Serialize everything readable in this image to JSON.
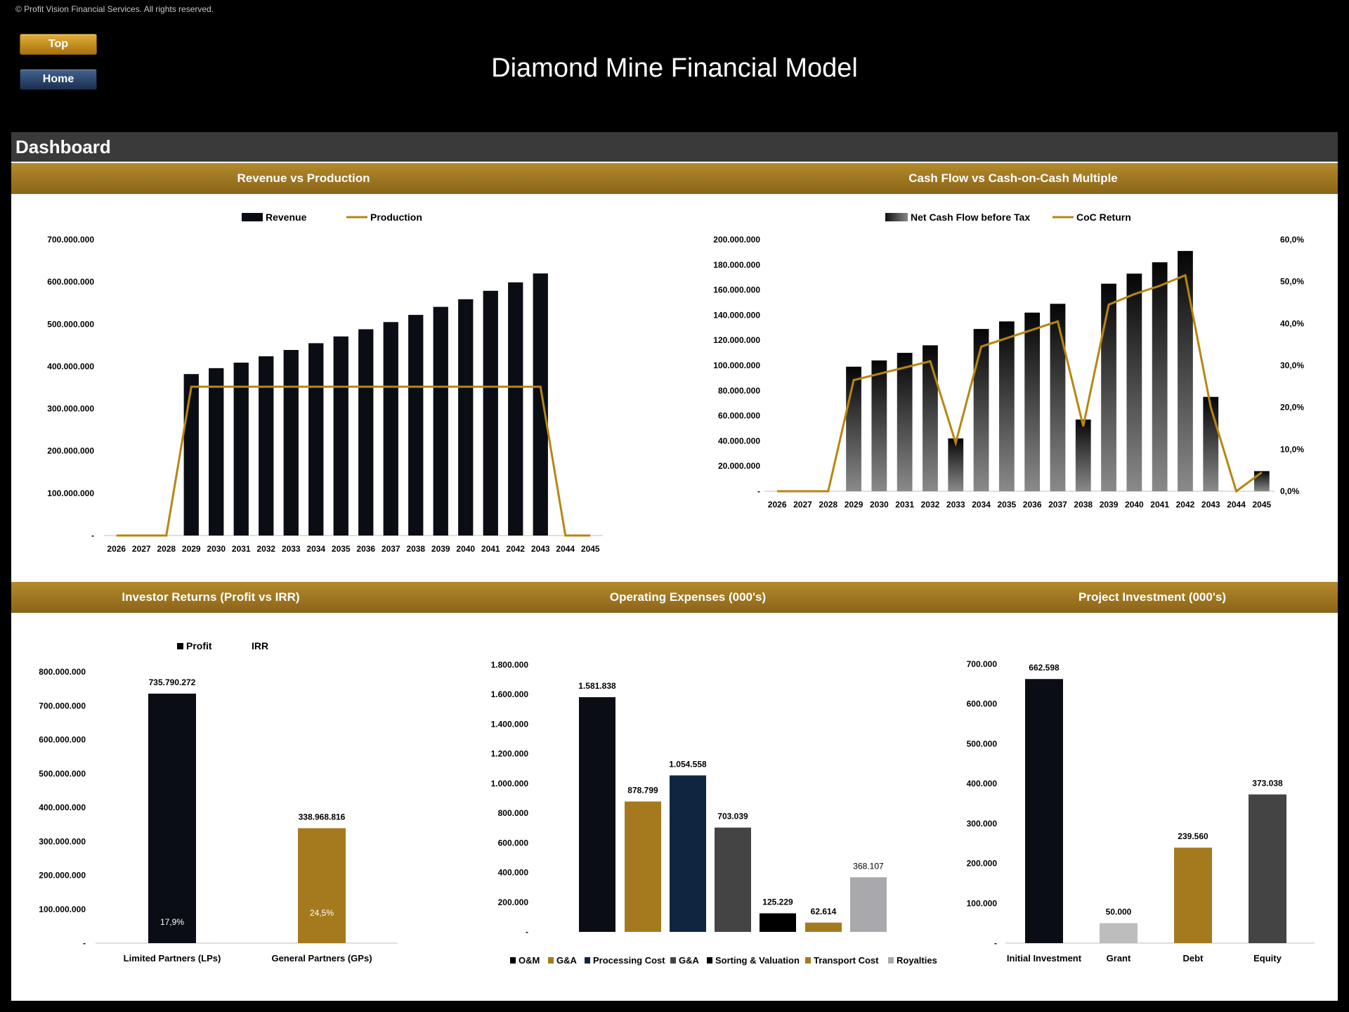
{
  "header": {
    "copyright": "© Profit Vision Financial Services. All rights reserved.",
    "top_button": "Top",
    "home_button": "Home",
    "title": "Diamond Mine Financial Model"
  },
  "dashboard": {
    "title": "Dashboard",
    "revenue_title": "Revenue vs Production",
    "cashflow_title": "Cash Flow vs Cash-on-Cash Multiple",
    "investor_title": "Investor Returns (Profit vs IRR)",
    "opex_title": "Operating Expenses (000's)",
    "investment_title": "Project Investment (000's)"
  },
  "colors": {
    "gold": "#a57a1e",
    "line": "#b7860f",
    "navy": "#0f2540",
    "dark": "#0a0d14",
    "grey": "#444444",
    "lightgrey": "#bdbdbd"
  },
  "chart_data": [
    {
      "id": "revenue",
      "type": "bar",
      "title": "Revenue vs Production",
      "categories": [
        "2026",
        "2027",
        "2028",
        "2029",
        "2030",
        "2031",
        "2032",
        "2033",
        "2034",
        "2035",
        "2036",
        "2037",
        "2038",
        "2039",
        "2040",
        "2041",
        "2042",
        "2043",
        "2044",
        "2045"
      ],
      "series": [
        {
          "name": "Revenue",
          "kind": "bar",
          "values": [
            0,
            0,
            0,
            382000000,
            396000000,
            409000000,
            424000000,
            439000000,
            455000000,
            471000000,
            488000000,
            505000000,
            522000000,
            541000000,
            559000000,
            579000000,
            599000000,
            620000000,
            0,
            0
          ]
        },
        {
          "name": "Production",
          "kind": "line",
          "values": [
            0,
            0,
            0,
            352000000,
            352000000,
            352000000,
            352000000,
            352000000,
            352000000,
            352000000,
            352000000,
            352000000,
            352000000,
            352000000,
            352000000,
            352000000,
            352000000,
            352000000,
            0,
            0
          ]
        }
      ],
      "ylim": [
        0,
        700000000
      ],
      "yticks": [
        "-",
        "100.000.000",
        "200.000.000",
        "300.000.000",
        "400.000.000",
        "500.000.000",
        "600.000.000",
        "700.000.000"
      ]
    },
    {
      "id": "cashflow",
      "type": "bar",
      "title": "Cash Flow vs Cash-on-Cash Multiple",
      "categories": [
        "2026",
        "2027",
        "2028",
        "2029",
        "2030",
        "2031",
        "2032",
        "2033",
        "2034",
        "2035",
        "2036",
        "2037",
        "2038",
        "2039",
        "2040",
        "2041",
        "2042",
        "2043",
        "2044",
        "2045"
      ],
      "series": [
        {
          "name": "Net Cash Flow before Tax",
          "kind": "bar",
          "values": [
            0,
            0,
            0,
            99000000,
            104000000,
            110000000,
            116000000,
            42000000,
            129000000,
            135000000,
            142000000,
            149000000,
            57000000,
            165000000,
            173000000,
            182000000,
            191000000,
            75000000,
            0,
            16000000
          ]
        },
        {
          "name": "CoC Return",
          "kind": "line",
          "axis": "right",
          "values": [
            0,
            0,
            0,
            26.5,
            28.0,
            29.5,
            31.0,
            11.5,
            34.5,
            36.5,
            38.5,
            40.5,
            15.5,
            44.5,
            47.0,
            49.0,
            51.5,
            20.0,
            0,
            4.5
          ]
        }
      ],
      "ylim": [
        0,
        200000000
      ],
      "yticks": [
        "-",
        "20.000.000",
        "40.000.000",
        "60.000.000",
        "80.000.000",
        "100.000.000",
        "120.000.000",
        "140.000.000",
        "160.000.000",
        "180.000.000",
        "200.000.000"
      ],
      "y2lim": [
        0,
        60
      ],
      "y2ticks": [
        "0,0%",
        "10,0%",
        "20,0%",
        "30,0%",
        "40,0%",
        "50,0%",
        "60,0%"
      ]
    },
    {
      "id": "investor",
      "type": "bar",
      "title": "Investor Returns (Profit vs IRR)",
      "categories": [
        "Limited Partners (LPs)",
        "General Partners (GPs)"
      ],
      "values": [
        735790272,
        338968816
      ],
      "value_labels": [
        "735.790.272",
        "338.968.816"
      ],
      "irr_labels": [
        "17,9%",
        "24,5%"
      ],
      "legend": [
        "Profit",
        "IRR"
      ],
      "ylim": [
        0,
        800000000
      ],
      "yticks": [
        "-",
        "100.000.000",
        "200.000.000",
        "300.000.000",
        "400.000.000",
        "500.000.000",
        "600.000.000",
        "700.000.000",
        "800.000.000"
      ]
    },
    {
      "id": "opex",
      "type": "bar",
      "title": "Operating Expenses (000's)",
      "categories": [
        "O&M",
        "G&A",
        "Processing Cost",
        "G&A",
        "Sorting & Valuation",
        "Transport Cost",
        "Royalties"
      ],
      "values": [
        1581838,
        878799,
        1054558,
        703039,
        125229,
        62614,
        368107
      ],
      "value_labels": [
        "1.581.838",
        "878.799",
        "1.054.558",
        "703.039",
        "125.229",
        "62.614",
        "368.107"
      ],
      "ylim": [
        0,
        1800000
      ],
      "yticks": [
        "-",
        "200.000",
        "400.000",
        "600.000",
        "800.000",
        "1.000.000",
        "1.200.000",
        "1.400.000",
        "1.600.000",
        "1.800.000"
      ]
    },
    {
      "id": "investment",
      "type": "bar",
      "title": "Project Investment (000's)",
      "categories": [
        "Initial Investment",
        "Grant",
        "Debt",
        "Equity"
      ],
      "values": [
        662598,
        50000,
        239560,
        373038
      ],
      "value_labels": [
        "662.598",
        "50.000",
        "239.560",
        "373.038"
      ],
      "ylim": [
        0,
        700000
      ],
      "yticks": [
        "-",
        "100.000",
        "200.000",
        "300.000",
        "400.000",
        "500.000",
        "600.000",
        "700.000"
      ]
    }
  ]
}
